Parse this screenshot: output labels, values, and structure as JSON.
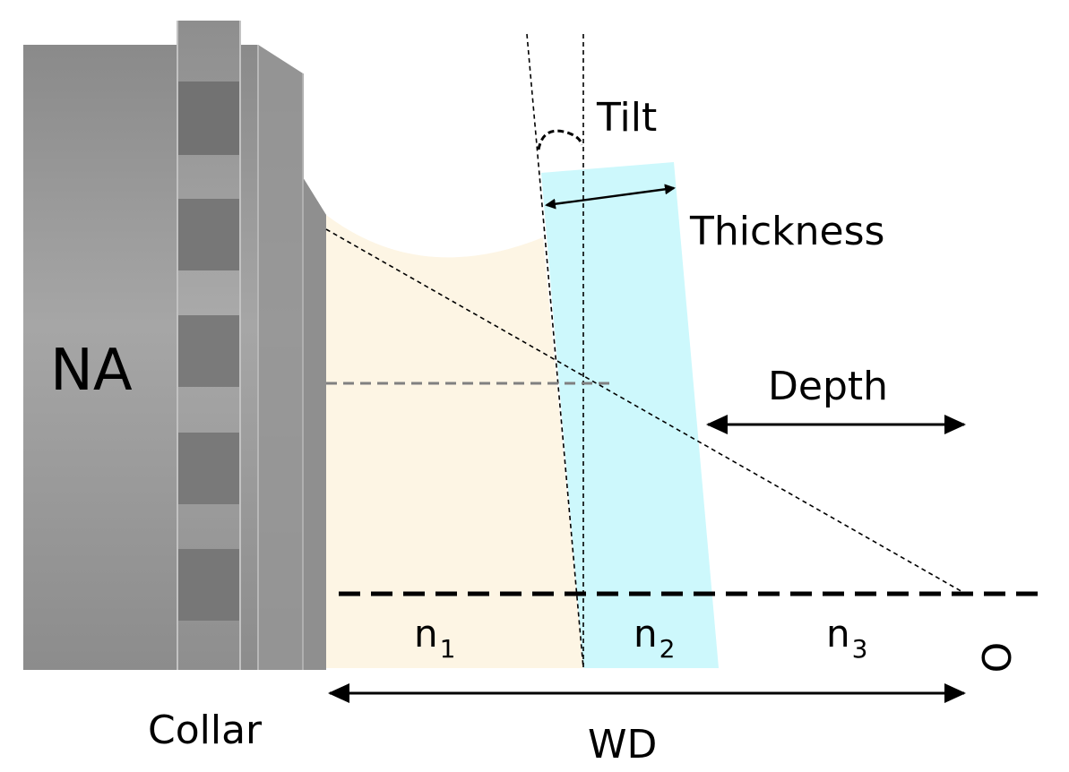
{
  "labels": {
    "na": "NA",
    "tilt": "Tilt",
    "thickness": "Thickness",
    "depth": "Depth",
    "collar": "Collar",
    "wd": "WD",
    "origin": "O",
    "n1": "n",
    "n1_sub": "1",
    "n2": "n",
    "n2_sub": "2",
    "n3": "n",
    "n3_sub": "3"
  },
  "colors": {
    "objective": "#9a9a9a",
    "objective_dark": "#7a7a7a",
    "immersion_medium": "#fdf5e4",
    "coverslip": "#cdf8fc",
    "line": "#000000",
    "guide_line": "#808080"
  }
}
